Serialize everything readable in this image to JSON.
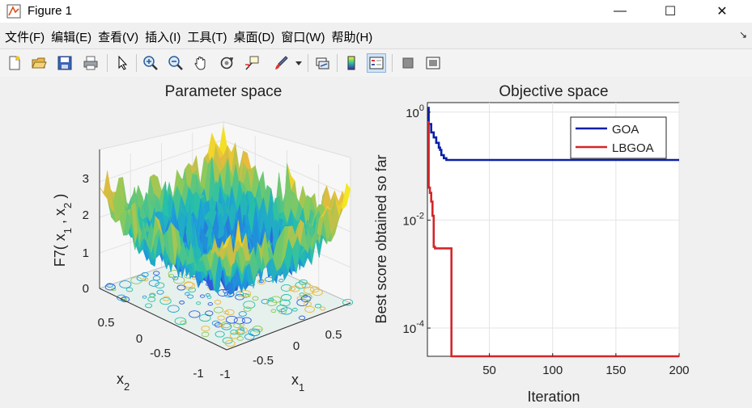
{
  "window": {
    "title": "Figure 1",
    "minimize_glyph": "—",
    "maximize_glyph": "☐",
    "close_glyph": "✕"
  },
  "menu": [
    "文件(F)",
    "编辑(E)",
    "查看(V)",
    "插入(I)",
    "工具(T)",
    "桌面(D)",
    "窗口(W)",
    "帮助(H)"
  ],
  "toolbar_icons": [
    "new-figure-icon",
    "open-file-icon",
    "save-icon",
    "print-icon",
    "pointer-icon",
    "zoom-in-icon",
    "zoom-out-icon",
    "pan-icon",
    "rotate-3d-icon",
    "data-cursor-icon",
    "brush-icon",
    "link-plot-icon",
    "colorbar-icon",
    "legend-icon",
    "hide-plot-tools-icon",
    "show-plot-tools-icon"
  ],
  "chart_data": [
    {
      "type": "surface",
      "title": "Parameter space",
      "xlabel": "x_1",
      "ylabel": "x_2",
      "zlabel": "F7( x_1 , x_2 )",
      "x_ticks": [
        "-1",
        "-0.5",
        "0",
        "0.5"
      ],
      "y_ticks": [
        "-1",
        "-0.5",
        "0",
        "0.5"
      ],
      "z_ticks": [
        "0",
        "1",
        "2",
        "3"
      ],
      "xlim": [
        -1,
        1
      ],
      "ylim": [
        -1,
        1
      ],
      "zlim": [
        0,
        3.5
      ],
      "colormap": [
        "#3e26a8",
        "#2e5bde",
        "#1d9fd9",
        "#27c0a8",
        "#8bca5a",
        "#e8ba3c",
        "#f9fb15"
      ]
    },
    {
      "type": "line",
      "title": "Objective space",
      "xlabel": "Iteration",
      "ylabel": "Best score obtained so far",
      "yscale": "log",
      "xlim": [
        1,
        200
      ],
      "ylim": [
        3e-05,
        1.5
      ],
      "x_ticks": [
        50,
        100,
        150,
        200
      ],
      "y_tick_labels": [
        {
          "base": "10",
          "exp": "0",
          "value": 1
        },
        {
          "base": "10",
          "exp": "-2",
          "value": 0.01
        },
        {
          "base": "10",
          "exp": "-4",
          "value": 0.0001
        }
      ],
      "grid": true,
      "legend_position": "top-right",
      "series": [
        {
          "name": "GOA",
          "color": "#0a1fa8",
          "x": [
            1,
            2,
            4,
            6,
            8,
            10,
            11,
            12,
            14,
            16,
            200
          ],
          "y": [
            1.2,
            0.6,
            0.42,
            0.34,
            0.27,
            0.22,
            0.2,
            0.16,
            0.14,
            0.13,
            0.13
          ]
        },
        {
          "name": "LBGOA",
          "color": "#d3262a",
          "x": [
            1,
            2,
            3,
            4,
            5,
            6,
            7,
            8,
            9,
            19,
            20,
            200
          ],
          "y": [
            0.65,
            0.04,
            0.032,
            0.022,
            0.012,
            0.0032,
            0.003,
            0.003,
            0.003,
            0.003,
            3e-05,
            3e-05
          ]
        }
      ]
    }
  ]
}
